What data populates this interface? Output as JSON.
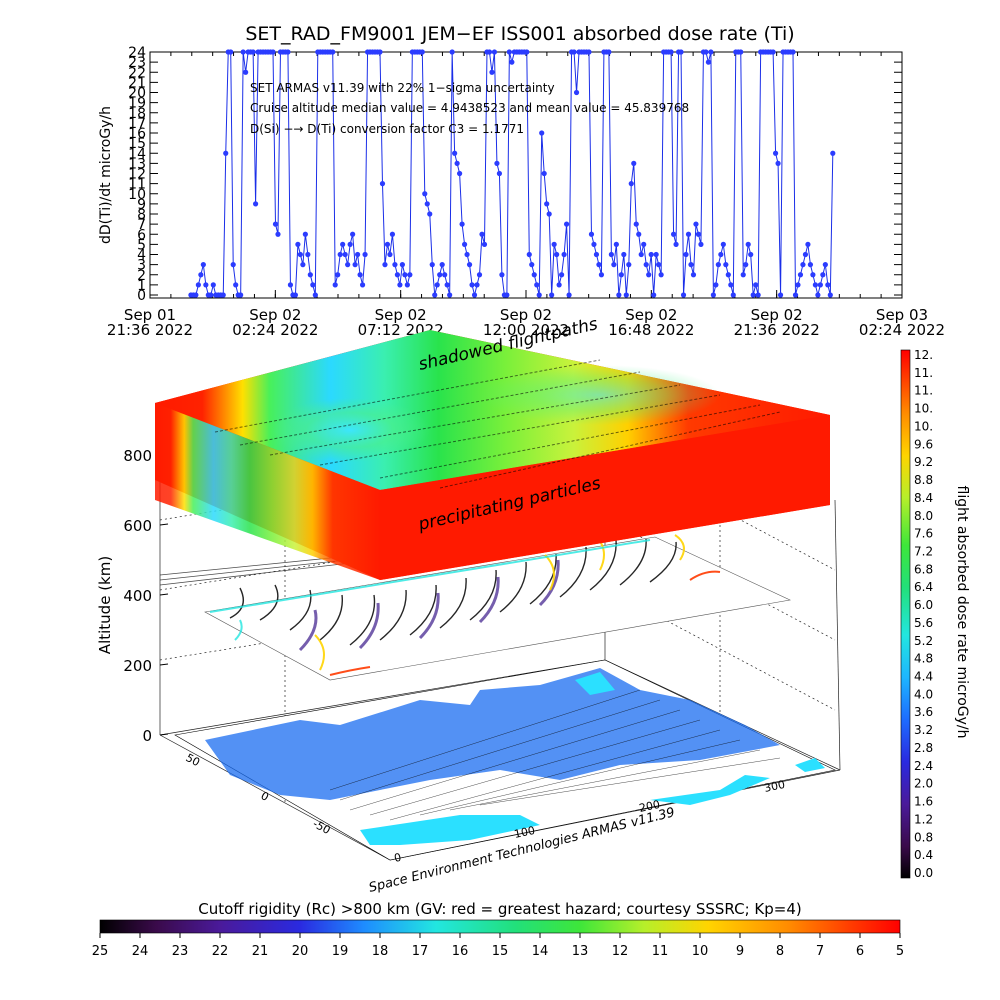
{
  "top_title": "SET_RAD_FM9001  JEM−EF ISS001 absorbed dose rate (Ti)",
  "annotations": [
    "SET ARMAS v11.39 with 22% 1−sigma uncertainty",
    "Cruise altitude median value = 4.9438523 and mean value = 45.839768",
    "D(Si) −→ D(Ti) conversion factor C3 = 1.1771"
  ],
  "globe_labels": {
    "shadowed": "shadowed flightpaths",
    "precipitating": "precipitating particles",
    "credit": "Space Environment Technologies ARMAS v11.39"
  },
  "bottom_title": "Cutoff rigidity (Rc) >800 km (GV: red = greatest hazard; courtesy SSSRC; Kp=4)",
  "right_colorbar_label": "flight absorbed dose rate microGy/h",
  "colors": {
    "series": "#1a2ee8",
    "marker": "#2b3cff",
    "panel_red": "#ff1a00"
  },
  "chart_data": [
    {
      "type": "line",
      "title": "SET_RAD_FM9001  JEM−EF ISS001 absorbed dose rate (Ti)",
      "ylabel": "dD(Ti)/dt microGy/h",
      "xlabel": "",
      "ylim": [
        0,
        24
      ],
      "yticks": [
        0,
        1,
        2,
        3,
        4,
        5,
        6,
        7,
        8,
        9,
        10,
        11,
        12,
        13,
        14,
        15,
        16,
        17,
        18,
        19,
        20,
        21,
        22,
        23,
        24
      ],
      "xticks": [
        {
          "l1": "Sep 01",
          "l2": "21:36 2022"
        },
        {
          "l1": "Sep 02",
          "l2": "02:24 2022"
        },
        {
          "l1": "Sep 02",
          "l2": "07:12 2022"
        },
        {
          "l1": "Sep 02",
          "l2": "12:00 2022"
        },
        {
          "l1": "Sep 02",
          "l2": "16:48 2022"
        },
        {
          "l1": "Sep 02",
          "l2": "21:36 2022"
        },
        {
          "l1": "Sep 03",
          "l2": "02:24 2022"
        }
      ],
      "xlim": [
        "2022-09-01 21:36",
        "2022-09-03 02:24"
      ],
      "grid": false,
      "series": [
        {
          "x_start": "2022-09-01 23:10",
          "x_end": "2022-09-02 23:45",
          "values": [
            0,
            0,
            0,
            1,
            2,
            3,
            1,
            0,
            0,
            1,
            0,
            0,
            0,
            0,
            14,
            24,
            24,
            3,
            1,
            0,
            0,
            24,
            22,
            24,
            24,
            24,
            9,
            24,
            24,
            24,
            24,
            24,
            24,
            24,
            7,
            6,
            24,
            24,
            24,
            24,
            1,
            0,
            0,
            5,
            4,
            3,
            6,
            4,
            2,
            1,
            0,
            24,
            24,
            24,
            24,
            24,
            24,
            24,
            1,
            2,
            4,
            5,
            4,
            3,
            5,
            6,
            3,
            4,
            2,
            1,
            4,
            24,
            24,
            24,
            24,
            24,
            24,
            11,
            3,
            5,
            4,
            6,
            3,
            2,
            1,
            3,
            2,
            1,
            2,
            24,
            24,
            24,
            24,
            24,
            10,
            9,
            8,
            3,
            0,
            1,
            2,
            3,
            2,
            1,
            0,
            24,
            14,
            13,
            12,
            7,
            5,
            4,
            3,
            1,
            0,
            1,
            2,
            6,
            5,
            24,
            24,
            22,
            24,
            13,
            12,
            2,
            0,
            0,
            24,
            23,
            24,
            24,
            24,
            24,
            24,
            24,
            4,
            3,
            2,
            1,
            0,
            16,
            12,
            9,
            8,
            0,
            5,
            4,
            1,
            2,
            4,
            7,
            0,
            24,
            24,
            20,
            24,
            24,
            24,
            24,
            24,
            6,
            5,
            4,
            3,
            2,
            24,
            24,
            24,
            4,
            3,
            5,
            0,
            2,
            4,
            0,
            3,
            11,
            13,
            7,
            6,
            4,
            5,
            3,
            2,
            4,
            0,
            4,
            3,
            2,
            24,
            24,
            24,
            24,
            6,
            5,
            24,
            24,
            0,
            4,
            6,
            3,
            2,
            7,
            6,
            5,
            24,
            24,
            23,
            24,
            0,
            1,
            3,
            4,
            5,
            3,
            2,
            1,
            0,
            24,
            24,
            24,
            2,
            3,
            5,
            4,
            0,
            1,
            0,
            24,
            24,
            24,
            24,
            24,
            24,
            14,
            13,
            0,
            24,
            24,
            24,
            24,
            24,
            0,
            1,
            2,
            3,
            4,
            5,
            3,
            2,
            1,
            0,
            1,
            2,
            3,
            1,
            0,
            14
          ],
          "y_units": "microGy/h"
        }
      ]
    },
    {
      "type": "heatmap",
      "title": "",
      "zlabel": "Altitude (km)",
      "z_ticks": [
        0,
        200,
        400,
        600,
        800
      ],
      "lat_ticks": [
        -50,
        0,
        50
      ],
      "lon_ticks": [
        0,
        100,
        200,
        300
      ],
      "colorbar_right": {
        "label": "flight absorbed dose rate microGy/h",
        "range": [
          0.0,
          12.0
        ],
        "ticks": [
          "12.",
          "11.",
          "11.",
          "10.",
          "10.",
          "9.6",
          "9.2",
          "8.8",
          "8.4",
          "8.0",
          "7.6",
          "7.2",
          "6.8",
          "6.4",
          "6.0",
          "5.6",
          "5.2",
          "4.8",
          "4.4",
          "4.0",
          "3.6",
          "3.2",
          "2.8",
          "2.4",
          "2.0",
          "1.6",
          "1.2",
          "0.8",
          "0.4",
          "0.0"
        ]
      },
      "colorbar_bottom": {
        "label": "Cutoff rigidity (Rc) >800 km (GV: red = greatest hazard; courtesy SSSRC; Kp=4)",
        "ticks": [
          "25",
          "24",
          "23",
          "22",
          "21",
          "20",
          "19",
          "18",
          "17",
          "16",
          "15",
          "14",
          "13",
          "12",
          "11",
          "10",
          "9",
          "8",
          "7",
          "6",
          "5"
        ]
      }
    }
  ]
}
